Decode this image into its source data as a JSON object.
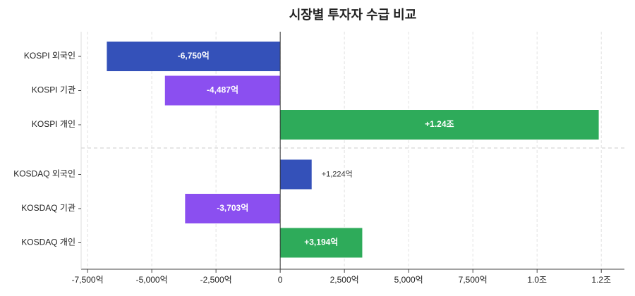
{
  "chart_data": {
    "type": "hbar",
    "title": "시장별 투자자 수급 비교",
    "categories": [
      "KOSPI 외국인",
      "KOSPI 기관",
      "KOSPI 개인",
      "KOSDAQ 외국인",
      "KOSDAQ 기관",
      "KOSDAQ 개인"
    ],
    "values": [
      -6750,
      -4487,
      12400,
      1224,
      -3703,
      3194
    ],
    "value_labels": [
      "-6,750억",
      "-4,487억",
      "+1.24조",
      "+1,224억",
      "-3,703억",
      "+3,194억"
    ],
    "colors": [
      "#3451b9",
      "#8b4ff0",
      "#2eab5a",
      "#3451b9",
      "#8b4ff0",
      "#2eab5a"
    ],
    "xlim": [
      -7750,
      13400
    ],
    "xticks": [
      {
        "value": -7500,
        "label": "-7,500억"
      },
      {
        "value": -5000,
        "label": "-5,000억"
      },
      {
        "value": -2500,
        "label": "-2,500억"
      },
      0,
      {
        "value": 2500,
        "label": "2,500억"
      },
      {
        "value": 5000,
        "label": "5,000억"
      },
      {
        "value": 7500,
        "label": "7,500억"
      },
      {
        "value": 10000,
        "label": "1.0조"
      },
      {
        "value": 12500,
        "label": "1.2조"
      }
    ],
    "grid": true
  }
}
